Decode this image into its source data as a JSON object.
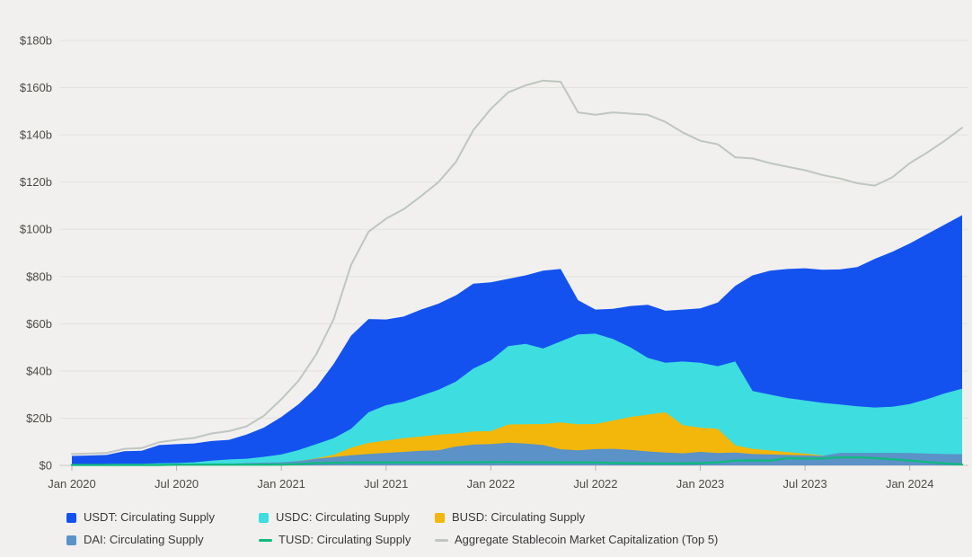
{
  "chart_data": {
    "type": "area",
    "title": "",
    "grid": "horizontal",
    "legend_position": "bottom",
    "y_axis": {
      "min": 0,
      "max": 180,
      "step": 20,
      "unit": "$ billions"
    },
    "ylim": [
      0,
      180
    ],
    "y_tick_labels": [
      "$0",
      "$20b",
      "$40b",
      "$60b",
      "$80b",
      "$100b",
      "$120b",
      "$140b",
      "$160b",
      "$180b"
    ],
    "x_tick_labels": [
      "Jan 2020",
      "Jul 2020",
      "Jan 2021",
      "Jul 2021",
      "Jan 2022",
      "Jul 2022",
      "Jan 2023",
      "Jul 2023",
      "Jan 2024"
    ],
    "x_months": [
      "2020-01",
      "2020-02",
      "2020-03",
      "2020-04",
      "2020-05",
      "2020-06",
      "2020-07",
      "2020-08",
      "2020-09",
      "2020-10",
      "2020-11",
      "2020-12",
      "2021-01",
      "2021-02",
      "2021-03",
      "2021-04",
      "2021-05",
      "2021-06",
      "2021-07",
      "2021-08",
      "2021-09",
      "2021-10",
      "2021-11",
      "2021-12",
      "2022-01",
      "2022-02",
      "2022-03",
      "2022-04",
      "2022-05",
      "2022-06",
      "2022-07",
      "2022-08",
      "2022-09",
      "2022-10",
      "2022-11",
      "2022-12",
      "2023-01",
      "2023-02",
      "2023-03",
      "2023-04",
      "2023-05",
      "2023-06",
      "2023-07",
      "2023-08",
      "2023-09",
      "2023-10",
      "2023-11",
      "2023-12",
      "2024-01",
      "2024-02",
      "2024-03",
      "2024-04"
    ],
    "series": [
      {
        "key": "usdt",
        "name": "USDT: Circulating Supply",
        "type": "area",
        "color": "#1452ef",
        "values": [
          4.0,
          4.2,
          4.4,
          6.0,
          6.2,
          8.6,
          9.0,
          9.3,
          10.3,
          10.8,
          13.0,
          16.0,
          20.5,
          26.0,
          33.0,
          43.0,
          55.0,
          62.0,
          61.8,
          63.0,
          66.0,
          68.5,
          72.0,
          77.0,
          77.5,
          79.0,
          80.5,
          82.5,
          83.2,
          70.0,
          66.0,
          66.3,
          67.5,
          68.0,
          65.5,
          66.0,
          66.5,
          69.0,
          76.0,
          80.5,
          82.5,
          83.2,
          83.5,
          82.9,
          83.0,
          84.0,
          87.5,
          90.5,
          94.0,
          98.0,
          102.0,
          106.0
        ]
      },
      {
        "key": "usdc",
        "name": "USDC: Circulating Supply",
        "type": "area",
        "color": "#3edde0",
        "values": [
          0.45,
          0.45,
          0.6,
          0.7,
          0.7,
          0.9,
          1.0,
          1.3,
          2.0,
          2.5,
          2.8,
          3.6,
          4.6,
          6.5,
          9.0,
          11.5,
          15.5,
          22.5,
          25.5,
          27.0,
          29.5,
          32.0,
          35.5,
          41.0,
          44.5,
          50.5,
          51.5,
          49.5,
          52.5,
          55.5,
          55.8,
          53.5,
          50.0,
          45.5,
          43.5,
          44.0,
          43.5,
          42.0,
          44.0,
          31.5,
          30.0,
          28.5,
          27.5,
          26.5,
          25.8,
          25.0,
          24.5,
          24.8,
          26.0,
          28.0,
          30.5,
          32.5
        ]
      },
      {
        "key": "busd",
        "name": "BUSD: Circulating Supply",
        "type": "area",
        "color": "#f2b70a",
        "values": [
          0.02,
          0.03,
          0.05,
          0.1,
          0.1,
          0.15,
          0.2,
          0.25,
          0.4,
          0.5,
          0.6,
          0.8,
          1.0,
          1.8,
          3.0,
          4.5,
          7.5,
          9.5,
          10.5,
          11.5,
          12.2,
          13.0,
          13.5,
          14.4,
          14.5,
          17.3,
          17.4,
          17.5,
          18.2,
          17.4,
          17.5,
          19.0,
          20.5,
          21.5,
          22.5,
          17.0,
          16.0,
          15.5,
          8.5,
          7.0,
          6.3,
          5.6,
          5.0,
          4.2,
          3.4,
          2.6,
          1.9,
          1.3,
          0.7,
          0.4,
          0.2,
          0.1
        ]
      },
      {
        "key": "dai",
        "name": "DAI: Circulating Supply",
        "type": "area",
        "color": "#5b92c7",
        "values": [
          0.1,
          0.1,
          0.1,
          0.1,
          0.12,
          0.15,
          0.25,
          0.4,
          0.5,
          0.7,
          1.0,
          1.15,
          1.3,
          1.8,
          2.8,
          3.5,
          4.3,
          4.8,
          5.3,
          5.7,
          6.2,
          6.4,
          8.0,
          8.8,
          9.0,
          9.6,
          9.2,
          8.6,
          6.8,
          6.4,
          6.9,
          7.0,
          6.6,
          5.9,
          5.4,
          5.1,
          5.7,
          5.2,
          5.4,
          4.8,
          4.6,
          4.4,
          4.3,
          4.0,
          5.3,
          5.3,
          5.3,
          5.3,
          5.2,
          5.0,
          4.8,
          4.7
        ]
      },
      {
        "key": "tusd",
        "name": "TUSD: Circulating Supply",
        "type": "line",
        "color": "#10b981",
        "values": [
          0.14,
          0.14,
          0.14,
          0.14,
          0.15,
          0.15,
          0.3,
          0.3,
          0.3,
          0.3,
          0.3,
          0.3,
          0.35,
          0.5,
          0.9,
          1.1,
          1.2,
          1.2,
          1.2,
          1.2,
          1.2,
          1.2,
          1.3,
          1.3,
          1.4,
          1.4,
          1.3,
          1.3,
          1.2,
          1.2,
          1.2,
          1.0,
          0.9,
          0.8,
          0.8,
          0.8,
          0.9,
          1.3,
          2.0,
          2.1,
          2.0,
          3.1,
          2.9,
          2.9,
          3.4,
          3.4,
          3.1,
          2.6,
          2.0,
          1.4,
          0.8,
          0.4
        ]
      },
      {
        "key": "aggregate",
        "name": "Aggregate Stablecoin Market Capitalization (Top 5)",
        "type": "line",
        "color": "#bfc6c1",
        "values": [
          4.8,
          5.0,
          5.3,
          7.0,
          7.3,
          9.8,
          10.8,
          11.6,
          13.5,
          14.5,
          16.5,
          21.0,
          28.0,
          36.0,
          47.0,
          62.0,
          85.0,
          99.0,
          104.5,
          108.5,
          114.0,
          120.0,
          128.5,
          142.0,
          151.0,
          158.0,
          161.0,
          163.0,
          162.5,
          149.5,
          148.5,
          149.5,
          149.0,
          148.5,
          145.5,
          141.0,
          137.5,
          136.0,
          130.5,
          130.0,
          128.0,
          126.5,
          125.0,
          123.0,
          121.5,
          119.5,
          118.5,
          122.0,
          128.0,
          132.5,
          137.5,
          143.0
        ]
      }
    ]
  },
  "colors": {
    "background": "#f1f0ee",
    "gridline": "#e3e2dd",
    "baseline": "#c9c8c3",
    "tick": "#b5b4af",
    "axis_text": "#4c4b47",
    "legend_text": "#38383a"
  }
}
